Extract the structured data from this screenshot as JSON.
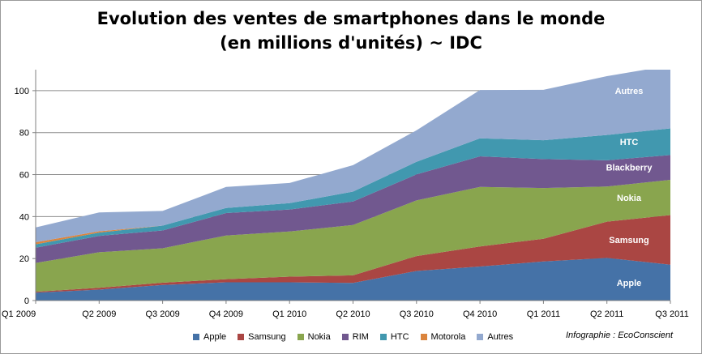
{
  "chart_data": {
    "type": "area",
    "stacked": true,
    "title": "Evolution des ventes de smartphones dans le monde",
    "subtitle": "(en millions d'unités) ~ IDC",
    "categories": [
      "Q1 2009",
      "Q2 2009",
      "Q3 2009",
      "Q4 2009",
      "Q1 2010",
      "Q2 2010",
      "Q3 2010",
      "Q4 2010",
      "Q1 2011",
      "Q2 2011",
      "Q3 2011"
    ],
    "y_ticks": [
      "0",
      "20",
      "40",
      "60",
      "80",
      "100"
    ],
    "ylim": [
      0,
      110
    ],
    "grid": true,
    "legend_position": "bottom",
    "series": [
      {
        "name": "Apple",
        "color": "#4572A7",
        "values": [
          3.8,
          5.2,
          7.4,
          8.7,
          8.7,
          8.4,
          14.1,
          16.2,
          18.6,
          20.3,
          17.1
        ]
      },
      {
        "name": "Samsung",
        "color": "#AA4643",
        "values": [
          0.4,
          0.9,
          1.1,
          1.5,
          2.7,
          3.6,
          7.1,
          9.6,
          10.8,
          17.3,
          23.6
        ]
      },
      {
        "name": "Nokia",
        "color": "#89A54E",
        "values": [
          13.7,
          16.9,
          16.4,
          20.8,
          21.5,
          24.0,
          26.5,
          28.3,
          24.2,
          16.7,
          16.8
        ]
      },
      {
        "name": "RIM",
        "color": "#71588F",
        "values": [
          7.3,
          7.8,
          8.5,
          10.7,
          10.5,
          11.2,
          12.4,
          14.6,
          13.8,
          12.5,
          11.8
        ]
      },
      {
        "name": "HTC",
        "color": "#4198AF",
        "values": [
          1.6,
          1.6,
          2.3,
          2.4,
          3.0,
          4.7,
          6.0,
          8.6,
          9.0,
          12.1,
          12.7
        ]
      },
      {
        "name": "Motorola",
        "color": "#DB843D",
        "values": [
          1.0,
          0.6,
          0.0,
          0.0,
          0.0,
          0.0,
          0.0,
          0.0,
          0.0,
          0.0,
          0.0
        ]
      },
      {
        "name": "Autres",
        "color": "#93A9CF",
        "values": [
          7.0,
          9.0,
          7.0,
          10.0,
          9.6,
          12.6,
          15.0,
          23.0,
          24.0,
          28.0,
          30.0
        ]
      }
    ],
    "area_labels": [
      "Autres",
      "HTC",
      "Blackberry",
      "Nokia",
      "Samsung",
      "Apple"
    ]
  },
  "credit": "Infographie : EcoConscient"
}
